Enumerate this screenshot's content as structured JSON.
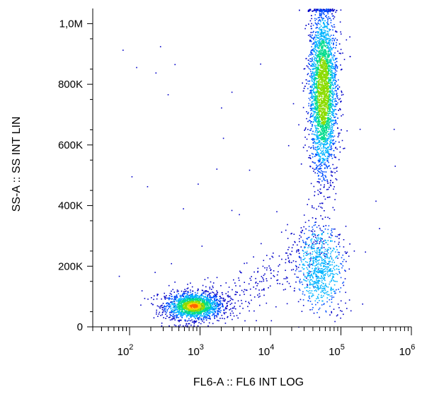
{
  "chart_data": {
    "type": "scatter",
    "title": "",
    "xlabel": "FL6-A :: FL6 INT LOG",
    "ylabel": "SS-A :: SS INT LIN",
    "x_scale": "log",
    "xlim": [
      30,
      1000000
    ],
    "ylim": [
      0,
      1050000
    ],
    "x_ticks": [
      {
        "value": 100,
        "base": "10",
        "exp": "2"
      },
      {
        "value": 1000,
        "base": "10",
        "exp": "3"
      },
      {
        "value": 10000,
        "base": "10",
        "exp": "4"
      },
      {
        "value": 100000,
        "base": "10",
        "exp": "5"
      },
      {
        "value": 1000000,
        "base": "10",
        "exp": "6"
      }
    ],
    "y_ticks": [
      {
        "value": 0,
        "label": "0"
      },
      {
        "value": 200000,
        "label": "200K"
      },
      {
        "value": 400000,
        "label": "400K"
      },
      {
        "value": 600000,
        "label": "600K"
      },
      {
        "value": 800000,
        "label": "800K"
      },
      {
        "value": 1000000,
        "label": "1,0M"
      }
    ],
    "grid": false,
    "legend": "none",
    "colormap": [
      "#0000c8",
      "#0050ff",
      "#00b4ff",
      "#00dc8c",
      "#8cdc00",
      "#ffd200",
      "#ff6400"
    ],
    "populations": [
      {
        "x_center": 800,
        "y_center": 70000,
        "x_spread_log": 0.2,
        "y_spread": 22000,
        "count": 1600
      },
      {
        "x_center": 55000,
        "y_center": 780000,
        "x_spread_log": 0.1,
        "y_spread": 140000,
        "count": 3500
      },
      {
        "x_center": 50000,
        "y_center": 200000,
        "x_spread_log": 0.16,
        "y_spread": 70000,
        "count": 700
      }
    ]
  }
}
